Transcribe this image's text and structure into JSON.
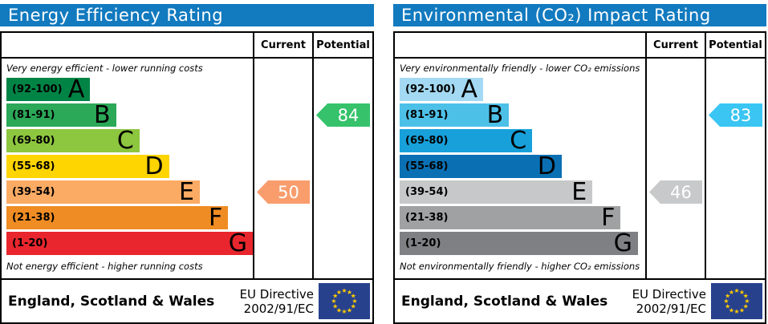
{
  "colors": {
    "header_bg": "#127abf",
    "eu_flag_bg": "#27418d",
    "eu_star": "#ffcc00",
    "arrow_text": "#ffffff"
  },
  "panels": [
    {
      "title": "Energy Efficiency Rating",
      "columns": {
        "current": "Current",
        "potential": "Potential"
      },
      "top_caption": "Very energy efficient - lower running costs",
      "bottom_caption": "Not energy efficient - higher running costs",
      "bands": [
        {
          "range": "(92-100)",
          "letter": "A",
          "color": "#008445",
          "width_pct": 34
        },
        {
          "range": "(81-91)",
          "letter": "B",
          "color": "#2ba858",
          "width_pct": 44.5
        },
        {
          "range": "(69-80)",
          "letter": "C",
          "color": "#8dc63f",
          "width_pct": 54
        },
        {
          "range": "(55-68)",
          "letter": "D",
          "color": "#fed401",
          "width_pct": 66
        },
        {
          "range": "(39-54)",
          "letter": "E",
          "color": "#fbab64",
          "width_pct": 78.5
        },
        {
          "range": "(21-38)",
          "letter": "F",
          "color": "#ef8c23",
          "width_pct": 90
        },
        {
          "range": "(1-20)",
          "letter": "G",
          "color": "#e9262d",
          "width_pct": 100
        }
      ],
      "current": {
        "value": "50",
        "band_index": 4,
        "color": "#f99d6d"
      },
      "potential": {
        "value": "84",
        "band_index": 1,
        "color": "#35c26b"
      },
      "footer": {
        "region": "England, Scotland & Wales",
        "directive_line1": "EU Directive",
        "directive_line2": "2002/91/EC"
      }
    },
    {
      "title": "Environmental (CO₂) Impact Rating",
      "columns": {
        "current": "Current",
        "potential": "Potential"
      },
      "top_caption": "Very environmentally friendly - lower CO₂ emissions",
      "bottom_caption": "Not environmentally friendly - higher CO₂ emissions",
      "bands": [
        {
          "range": "(92-100)",
          "letter": "A",
          "color": "#a3d9f2",
          "width_pct": 34
        },
        {
          "range": "(81-91)",
          "letter": "B",
          "color": "#4dc0e8",
          "width_pct": 44.5
        },
        {
          "range": "(69-80)",
          "letter": "C",
          "color": "#17a0da",
          "width_pct": 54
        },
        {
          "range": "(55-68)",
          "letter": "D",
          "color": "#0a70b3",
          "width_pct": 66
        },
        {
          "range": "(39-54)",
          "letter": "E",
          "color": "#c7c8ca",
          "width_pct": 78.5
        },
        {
          "range": "(21-38)",
          "letter": "F",
          "color": "#a0a1a3",
          "width_pct": 90
        },
        {
          "range": "(1-20)",
          "letter": "G",
          "color": "#7f8083",
          "width_pct": 97
        }
      ],
      "current": {
        "value": "46",
        "band_index": 4,
        "color": "#c8c9ca"
      },
      "potential": {
        "value": "83",
        "band_index": 1,
        "color": "#3ac5f3"
      },
      "footer": {
        "region": "England, Scotland & Wales",
        "directive_line1": "EU Directive",
        "directive_line2": "2002/91/EC"
      }
    }
  ],
  "chart_data": [
    {
      "type": "bar",
      "title": "Energy Efficiency Rating",
      "orientation": "horizontal",
      "categories": [
        "A (92-100)",
        "B (81-91)",
        "C (69-80)",
        "D (55-68)",
        "E (39-54)",
        "F (21-38)",
        "G (1-20)"
      ],
      "values": [
        102,
        134,
        161,
        199,
        237,
        271,
        302
      ],
      "value_note": "bar lengths are fixed band-scale pixels, not data",
      "markers": {
        "current": 50,
        "current_band": "E",
        "potential": 84,
        "potential_band": "B"
      },
      "annotations": [
        "Very energy efficient - lower running costs",
        "Not energy efficient - higher running costs",
        "England, Scotland & Wales",
        "EU Directive 2002/91/EC"
      ]
    },
    {
      "type": "bar",
      "title": "Environmental (CO₂) Impact Rating",
      "orientation": "horizontal",
      "categories": [
        "A (92-100)",
        "B (81-91)",
        "C (69-80)",
        "D (55-68)",
        "E (39-54)",
        "F (21-38)",
        "G (1-20)"
      ],
      "values": [
        102,
        134,
        161,
        199,
        237,
        271,
        294
      ],
      "value_note": "bar lengths are fixed band-scale pixels, not data",
      "markers": {
        "current": 46,
        "current_band": "E",
        "potential": 83,
        "potential_band": "B"
      },
      "annotations": [
        "Very environmentally friendly - lower CO₂ emissions",
        "Not environmentally friendly - higher CO₂ emissions",
        "England, Scotland & Wales",
        "EU Directive 2002/91/EC"
      ]
    }
  ]
}
